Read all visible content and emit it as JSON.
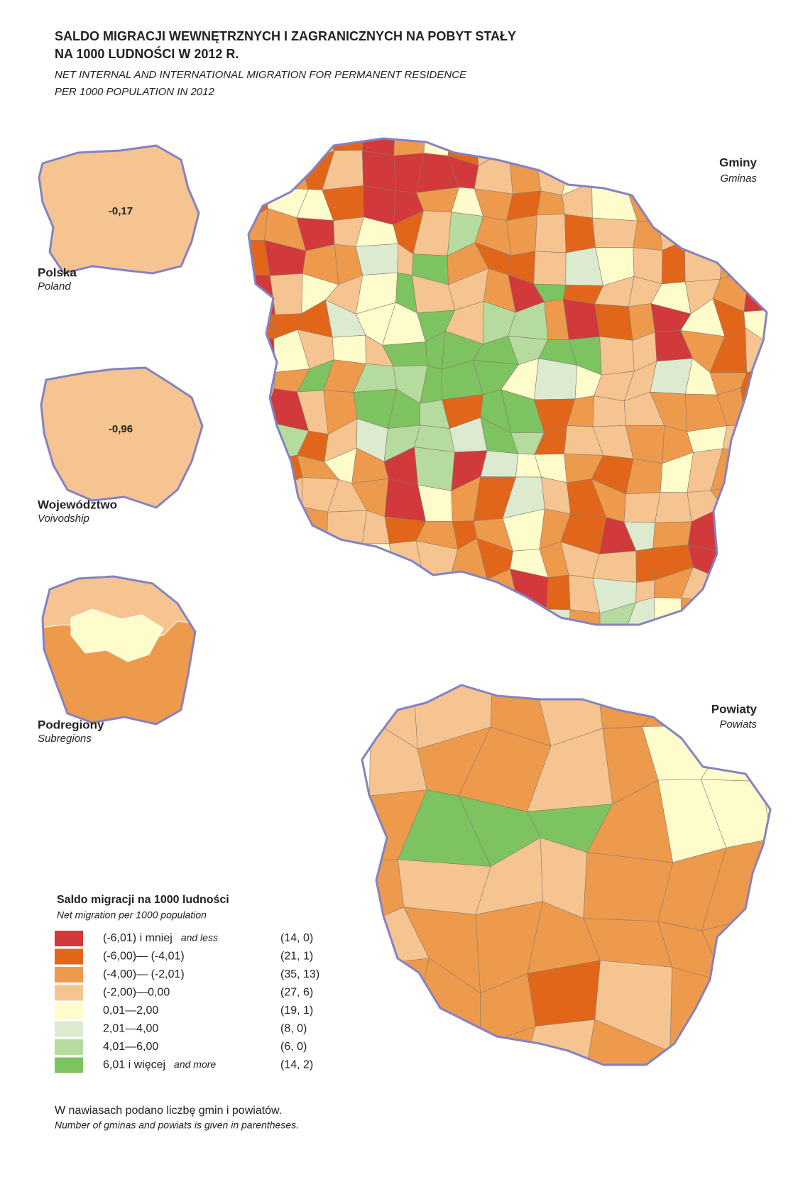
{
  "header": {
    "title_pl": [
      "SALDO MIGRACJI WEWNĘTRZNYCH I ZAGRANICZNYCH NA POBYT STAŁY",
      "NA 1000 LUDNOŚCI W 2012 R."
    ],
    "title_en": [
      "NET INTERNAL AND INTERNATIONAL MIGRATION FOR PERMANENT RESIDENCE",
      "PER 1000 POPULATION IN 2012"
    ]
  },
  "insets": [
    {
      "value": "-0,17",
      "label": "Polska",
      "label_en": "Poland"
    },
    {
      "value": "-0,96",
      "label": "Województwo",
      "label_en": "Voivodship"
    },
    {
      "label": "Podregiony",
      "label_en": "Subregions"
    }
  ],
  "maps": [
    {
      "label": "Gminy",
      "label_en": "Gminas"
    },
    {
      "label": "Powiaty",
      "label_en": "Powiats"
    }
  ],
  "legend": {
    "title": "Saldo migracji na 1000 ludności",
    "subtitle": "Net migration per 1000 population",
    "items": [
      {
        "color": "#d1393b",
        "label": "(-6,01) i mniej",
        "note": "and less",
        "counts": "(14, 0)"
      },
      {
        "color": "#e2661a",
        "label": "(-6,00)— (-4,01)",
        "counts": "(21, 1)"
      },
      {
        "color": "#ee9a4c",
        "label": "(-4,00)— (-2,01)",
        "counts": "(35, 13)"
      },
      {
        "color": "#f5c491",
        "label": "(-2,00)—0,00",
        "counts": "(27, 6)"
      },
      {
        "color": "#fffccc",
        "label": "0,01—2,00",
        "counts": "(19, 1)"
      },
      {
        "color": "#dcebd0",
        "label": "2,01—4,00",
        "counts": "(8, 0)"
      },
      {
        "color": "#b5dc9e",
        "label": "4,01—6,00",
        "counts": "(6, 0)"
      },
      {
        "color": "#7dc35f",
        "label": "6,01 i więcej",
        "note": "and more",
        "counts": "(14, 2)"
      }
    ]
  },
  "footnote": {
    "pl": "W nawiasach podano liczbę gmin i powiatów.",
    "en": "Number of gminas and powiats is given in parentheses."
  }
}
